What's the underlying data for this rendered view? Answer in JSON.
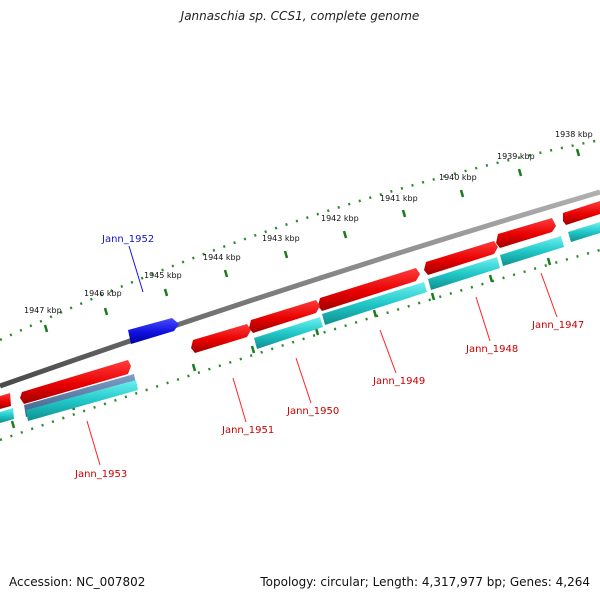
{
  "title": "Jannaschia sp. CCS1, complete genome",
  "footer": {
    "accession": "Accession: NC_007802",
    "info": "Topology: circular; Length: 4,317,977 bp; Genes: 4,264"
  },
  "colors": {
    "backbone": "#7a7a7a",
    "tick": "#1e7a1e",
    "forward_gene": "#ee0000",
    "reverse_gene": "#22c8c8",
    "highlight_gene": "#1414e6",
    "label_forward": "#cc0000",
    "label_highlight": "#1414c8"
  },
  "ticks": [
    {
      "label": "1938 kbp"
    },
    {
      "label": "1939 kbp"
    },
    {
      "label": "1940 kbp"
    },
    {
      "label": "1941 kbp"
    },
    {
      "label": "1942 kbp"
    },
    {
      "label": "1943 kbp"
    },
    {
      "label": "1944 kbp"
    },
    {
      "label": "1945 kbp"
    },
    {
      "label": "1946 kbp"
    },
    {
      "label": "1947 kbp"
    }
  ],
  "genes": [
    {
      "label": "Jann_1947"
    },
    {
      "label": "Jann_1948"
    },
    {
      "label": "Jann_1949"
    },
    {
      "label": "Jann_1950"
    },
    {
      "label": "Jann_1951"
    },
    {
      "label": "Jann_1952"
    },
    {
      "label": "Jann_1953"
    }
  ]
}
